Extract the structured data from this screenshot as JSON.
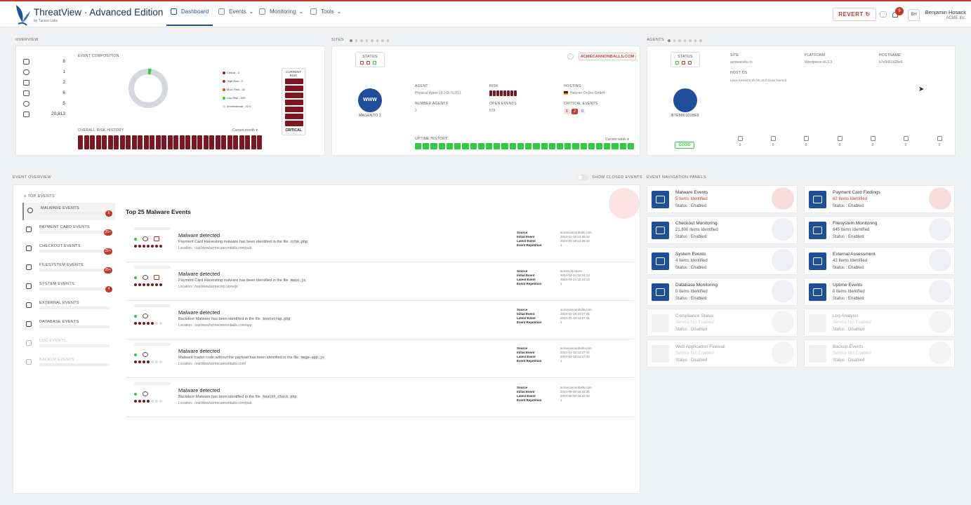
{
  "header": {
    "brand_title": "ThreatView · Advanced Edition",
    "brand_sub": "by Turaco Labs",
    "nav": [
      {
        "label": "Dashboard",
        "icon": "dashboard-icon"
      },
      {
        "label": "Events",
        "icon": "events-icon"
      },
      {
        "label": "Monitoring",
        "icon": "monitoring-icon"
      },
      {
        "label": "Tools",
        "icon": "tools-icon"
      }
    ],
    "revert_label": "REVERT",
    "notification_count": "9",
    "avatar_initials": "BH",
    "user_name": "Benjamin Hosack",
    "user_org": "ACME Inc."
  },
  "sections": {
    "overview": "OVERVIEW",
    "sites": "SITES",
    "agents": "AGENTS",
    "event_overview": "EVENT OVERVIEW",
    "show_closed": "SHOW CLOSED EVENTS",
    "event_nav_panels": "EVENT NAVIGATION PANELS"
  },
  "overview": {
    "counts": [
      {
        "icon": "sites-icon",
        "value": "8"
      },
      {
        "icon": "globe-icon",
        "value": "1"
      },
      {
        "icon": "server-icon",
        "value": "2"
      },
      {
        "icon": "agent-icon",
        "value": "6"
      },
      {
        "icon": "users-icon",
        "value": "5"
      },
      {
        "icon": "events-icon",
        "value": "20,813"
      }
    ],
    "composition_label": "EVENT COMPOSITION",
    "legend": [
      {
        "label": "Critical - 3",
        "color": "#7b1722"
      },
      {
        "label": "High Risk - 0",
        "color": "#a93226"
      },
      {
        "label": "Mod. Risk - 16",
        "color": "#d35400"
      },
      {
        "label": "Low Risk - 549",
        "color": "#2ecc40"
      },
      {
        "label": "Informational - 22 K",
        "color": "#d5d8dc"
      }
    ],
    "current_risk_label": "CURRENT RISK",
    "current_risk_value": "CRITICAL",
    "risk_history_label": "OVERALL RISK HISTORY",
    "risk_history_range": "Current month ▾"
  },
  "site": {
    "status_label": "STATUS",
    "domain": "ACMECANNONBALLS.COM",
    "logo_text": "WWW",
    "platform": "MAGENTO 2",
    "agent_label": "AGENT",
    "agent_value": "Physical Agent v3.3.0 / 0.20.1",
    "risk_label": "RISK",
    "hosting_label": "HOSTING",
    "hosting_value": "Hetzner Online GmbH",
    "number_agents_label": "NUMBER AGENTS",
    "number_agents_value": "2",
    "open_events_label": "OPEN EVENTS",
    "open_events_value": "678",
    "critical_events_label": "CRITICAL EVENTS",
    "critical_events_values": [
      "1",
      "2",
      "0"
    ],
    "uptime_label": "UPTIME HISTORY",
    "uptime_range": "Current week ▾"
  },
  "agent": {
    "status_label": "STATUS",
    "site_label": "SITE",
    "site_value": "acmeanvils.co",
    "platform_label": "PLATFORM",
    "platform_value": "Wordpress v6.3.3",
    "hostname_label": "HOSTNAME",
    "hostname_value": "b7e9961d28e9",
    "hostos_label": "HOST OS",
    "hostos_value": "Linux Kernel 5.15 (v5.15.0 Linux Kernel)",
    "agent_id": "B7E9961D28E9",
    "health": "GOOD",
    "counters": [
      {
        "icon": "malware-icon",
        "value": "0"
      },
      {
        "icon": "payment-card-icon",
        "value": "0"
      },
      {
        "icon": "cart-icon",
        "value": "0"
      },
      {
        "icon": "file-icon",
        "value": "0"
      },
      {
        "icon": "server-icon",
        "value": "0"
      },
      {
        "icon": "database-icon",
        "value": "0"
      },
      {
        "icon": "external-icon",
        "value": "0"
      }
    ]
  },
  "left_nav": {
    "header": "TOP EVENTS",
    "items": [
      {
        "label": "MALWARE EVENTS",
        "badge": "5",
        "icon": "malware-icon"
      },
      {
        "label": "PAYMENT CARD EVENTS",
        "badge": "25+",
        "icon": "payment-card-icon"
      },
      {
        "label": "CHECKOUT EVENTS",
        "badge": "25+",
        "icon": "cart-icon"
      },
      {
        "label": "FILESYSTEM EVENTS",
        "badge": "25+",
        "icon": "file-icon"
      },
      {
        "label": "SYSTEM EVENTS",
        "badge": "4",
        "icon": "server-icon"
      },
      {
        "label": "EXTERNAL EVENTS",
        "badge": "",
        "icon": "external-icon"
      },
      {
        "label": "DATABASE EVENTS",
        "badge": "",
        "icon": "database-icon"
      },
      {
        "label": "LOG EVENTS",
        "badge": "",
        "icon": "log-icon"
      },
      {
        "label": "BACKUP EVENTS",
        "badge": "",
        "icon": "backup-icon"
      }
    ]
  },
  "events": {
    "title": "Top 25 Malware Events",
    "meta_labels": [
      "Source",
      "Initial Event",
      "Latest Event",
      "Event Repetition"
    ],
    "items": [
      {
        "title": "Malware detected",
        "desc": "Payment Card Harvesting malware has been identified in the file",
        "file": "cchk.php",
        "location": "Location : /var/www/acmecannonballs.com/pub",
        "source": "acmecannonballs.com",
        "initial": "2024-01-18 13:36:10",
        "latest": "2024-01-18 13:36:10",
        "repetition": "1",
        "severity": 7
      },
      {
        "title": "Malware detected",
        "desc": "Payment Card Harvesting malware has been identified in the file",
        "file": "main.js",
        "location": "Location : /var/www/acmecorp.store/js",
        "source": "acmecorp.store",
        "initial": "2024-04-24 12:24:13",
        "latest": "2024-04-24 12:24:13",
        "repetition": "1",
        "severity": 7
      },
      {
        "title": "Malware detected",
        "desc": "Backdoor Malware has been identified in the file",
        "file": "bootstrap.php",
        "location": "Location : /var/www/acmecannonballs.com/app",
        "source": "acmecannonballs.com",
        "initial": "2024-01-18 13:27:41",
        "latest": "2024-01-18 13:27:41",
        "repetition": "1",
        "severity": 5
      },
      {
        "title": "Malware detected",
        "desc": "Malware loader code without the payload has been identified in the file",
        "file": "mage-app.js",
        "location": "Location : /var/www/acmecannonballs.com/",
        "source": "acmecannonballs.com",
        "initial": "2024-01-18 13:27:42",
        "latest": "2024-01-18 13:27:42",
        "repetition": "1",
        "severity": 4
      },
      {
        "title": "Malware detected",
        "desc": "Backdoor Malware has been identified in the file",
        "file": "health_check.php",
        "location": "Location : /var/www/acmecannonballs.com/pub",
        "source": "acmecannonballs.com",
        "initial": "2024-05-30 16:43:36",
        "latest": "2024-05-30 16:43:36",
        "repetition": "1",
        "severity": 4
      }
    ]
  },
  "nav_panels": [
    {
      "name": "Malware Events",
      "count": "5 Items Identified",
      "status": "Status : Enabled",
      "red": true,
      "enabled": true,
      "icon": "malware-icon"
    },
    {
      "name": "Payment Card Findings",
      "count": "62 Items Identified",
      "status": "Status : Enabled",
      "red": true,
      "enabled": true,
      "icon": "payment-card-icon"
    },
    {
      "name": "Checkout Monitoring",
      "count": "21,800 Items Identified",
      "status": "Status : Enabled",
      "red": false,
      "enabled": true,
      "icon": "cart-icon"
    },
    {
      "name": "Filesystem Monitoring",
      "count": "645 Items Identified",
      "status": "Status : Enabled",
      "red": false,
      "enabled": true,
      "icon": "file-icon"
    },
    {
      "name": "System Events",
      "count": "4 Items Identified",
      "status": "Status : Enabled",
      "red": false,
      "enabled": true,
      "icon": "server-icon"
    },
    {
      "name": "External Assessment",
      "count": "43 Items Identified",
      "status": "Status : Enabled",
      "red": false,
      "enabled": true,
      "icon": "external-icon"
    },
    {
      "name": "Database Monitoring",
      "count": "0 Items Identified",
      "status": "Status : Enabled",
      "red": false,
      "enabled": true,
      "icon": "database-icon"
    },
    {
      "name": "Uptime Events",
      "count": "0 Items Identified",
      "status": "Status : Enabled",
      "red": false,
      "enabled": true,
      "icon": "globe-icon"
    },
    {
      "name": "Compliance Status",
      "count": "Service Not Enabled",
      "status": "Status : Disabled",
      "red": false,
      "enabled": false,
      "icon": "compliance-icon"
    },
    {
      "name": "Log Analysis",
      "count": "Service Not Enabled",
      "status": "Status : Disabled",
      "red": false,
      "enabled": false,
      "icon": "log-icon"
    },
    {
      "name": "Web Application Firewall",
      "count": "Service Not Enabled",
      "status": "Status : Disabled",
      "red": false,
      "enabled": false,
      "icon": "firewall-icon"
    },
    {
      "name": "Backup Events",
      "count": "Service Not Enabled",
      "status": "Status : Disabled",
      "red": false,
      "enabled": false,
      "icon": "backup-icon"
    }
  ]
}
